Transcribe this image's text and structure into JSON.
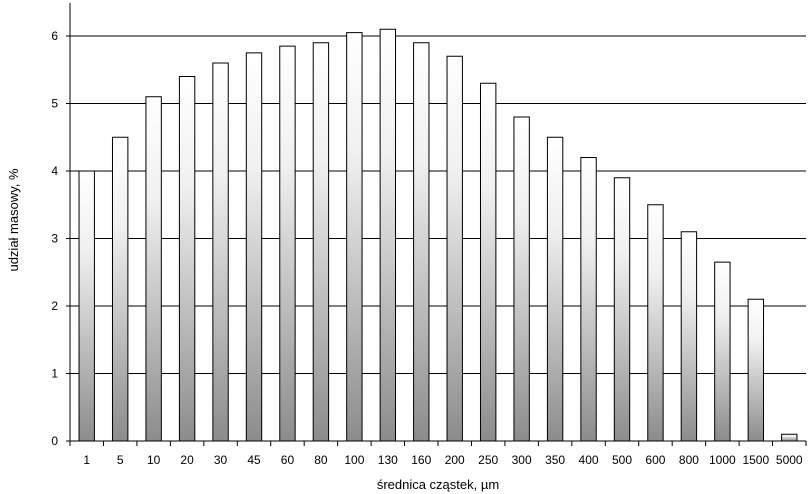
{
  "chart_data": {
    "type": "bar",
    "title": "",
    "xlabel": "średnica cząstek, µm",
    "ylabel": "udział masowy, %",
    "categories": [
      "1",
      "5",
      "10",
      "20",
      "30",
      "45",
      "60",
      "80",
      "100",
      "130",
      "160",
      "200",
      "250",
      "300",
      "350",
      "400",
      "500",
      "600",
      "800",
      "1000",
      "1500",
      "5000"
    ],
    "values": [
      4.0,
      4.5,
      5.1,
      5.4,
      5.6,
      5.75,
      5.85,
      5.9,
      6.05,
      6.1,
      5.9,
      5.7,
      5.3,
      4.8,
      4.5,
      4.2,
      3.9,
      3.5,
      3.1,
      2.65,
      2.1,
      0.1
    ],
    "ylim": [
      0,
      6
    ],
    "yticks": [
      "0",
      "1",
      "2",
      "3",
      "4",
      "5",
      "6"
    ],
    "grid": true,
    "legend": "none",
    "colors": {
      "bar_top": "#ffffff",
      "bar_bottom": "#8c8c8c",
      "outline": "#000000",
      "grid": "#000000"
    }
  }
}
